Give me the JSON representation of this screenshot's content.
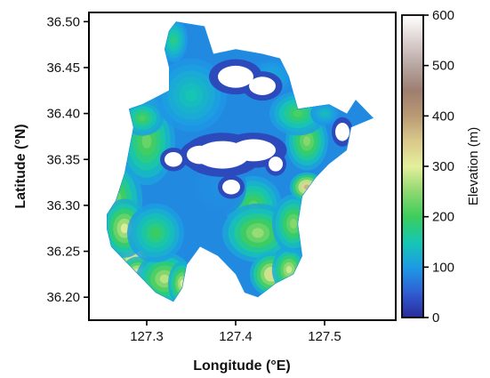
{
  "chart_data": {
    "type": "heatmap",
    "map": {
      "xlabel": "Longitude (°E)",
      "ylabel": "Latitude (°N)",
      "xlim": [
        127.235,
        127.58
      ],
      "ylim": [
        36.175,
        36.51
      ],
      "x_ticks": [
        127.3,
        127.4,
        127.5
      ],
      "x_tick_labels": [
        "127.3",
        "127.4",
        "127.5"
      ],
      "y_ticks": [
        36.2,
        36.25,
        36.3,
        36.35,
        36.4,
        36.45,
        36.5
      ],
      "y_tick_labels": [
        "36.20",
        "36.25",
        "36.30",
        "36.35",
        "36.40",
        "36.45",
        "36.50"
      ],
      "grid": false,
      "region_outline": [
        [
          127.333,
          36.5
        ],
        [
          127.365,
          36.495
        ],
        [
          127.375,
          36.465
        ],
        [
          127.4,
          36.47
        ],
        [
          127.43,
          36.465
        ],
        [
          127.45,
          36.46
        ],
        [
          127.46,
          36.44
        ],
        [
          127.47,
          36.405
        ],
        [
          127.505,
          36.41
        ],
        [
          127.525,
          36.4
        ],
        [
          127.535,
          36.415
        ],
        [
          127.55,
          36.4
        ],
        [
          127.555,
          36.395
        ],
        [
          127.53,
          36.385
        ],
        [
          127.525,
          36.36
        ],
        [
          127.505,
          36.345
        ],
        [
          127.49,
          36.33
        ],
        [
          127.475,
          36.31
        ],
        [
          127.47,
          36.28
        ],
        [
          127.475,
          36.245
        ],
        [
          127.465,
          36.225
        ],
        [
          127.445,
          36.215
        ],
        [
          127.425,
          36.2
        ],
        [
          127.41,
          36.205
        ],
        [
          127.4,
          36.225
        ],
        [
          127.38,
          36.245
        ],
        [
          127.36,
          36.255
        ],
        [
          127.345,
          36.235
        ],
        [
          127.34,
          36.21
        ],
        [
          127.33,
          36.195
        ],
        [
          127.31,
          36.205
        ],
        [
          127.29,
          36.225
        ],
        [
          127.275,
          36.24
        ],
        [
          127.26,
          36.255
        ],
        [
          127.255,
          36.275
        ],
        [
          127.255,
          36.29
        ],
        [
          127.265,
          36.305
        ],
        [
          127.275,
          36.335
        ],
        [
          127.28,
          36.36
        ],
        [
          127.285,
          36.385
        ],
        [
          127.28,
          36.405
        ],
        [
          127.295,
          36.41
        ],
        [
          127.325,
          36.425
        ],
        [
          127.325,
          36.45
        ],
        [
          127.32,
          36.47
        ],
        [
          127.325,
          36.49
        ]
      ],
      "elevation_blobs": [
        [
          127.26,
          36.305,
          0.022,
          0.03,
          260
        ],
        [
          127.285,
          36.245,
          0.018,
          0.018,
          330
        ],
        [
          127.29,
          36.225,
          0.012,
          0.012,
          360
        ],
        [
          127.275,
          36.275,
          0.016,
          0.02,
          300
        ],
        [
          127.32,
          36.22,
          0.02,
          0.018,
          280
        ],
        [
          127.34,
          36.215,
          0.01,
          0.015,
          300
        ],
        [
          127.3,
          36.37,
          0.02,
          0.03,
          230
        ],
        [
          127.295,
          36.395,
          0.015,
          0.012,
          210
        ],
        [
          127.33,
          36.48,
          0.01,
          0.015,
          180
        ],
        [
          127.35,
          36.42,
          0.025,
          0.025,
          150
        ],
        [
          127.42,
          36.3,
          0.02,
          0.02,
          220
        ],
        [
          127.425,
          36.27,
          0.025,
          0.02,
          260
        ],
        [
          127.44,
          36.225,
          0.015,
          0.015,
          330
        ],
        [
          127.46,
          36.23,
          0.012,
          0.015,
          290
        ],
        [
          127.465,
          36.28,
          0.015,
          0.02,
          250
        ],
        [
          127.48,
          36.32,
          0.012,
          0.01,
          380
        ],
        [
          127.48,
          36.37,
          0.015,
          0.02,
          250
        ],
        [
          127.47,
          36.4,
          0.02,
          0.015,
          210
        ],
        [
          127.5,
          36.4,
          0.01,
          0.008,
          140
        ],
        [
          127.44,
          36.44,
          0.015,
          0.012,
          120
        ],
        [
          127.31,
          36.27,
          0.02,
          0.02,
          200
        ],
        [
          127.38,
          36.32,
          0.02,
          0.02,
          90
        ]
      ],
      "lowland_voids": [
        [
          127.4,
          36.44,
          0.02,
          0.012
        ],
        [
          127.43,
          36.43,
          0.015,
          0.01
        ],
        [
          127.385,
          36.355,
          0.03,
          0.015
        ],
        [
          127.42,
          36.36,
          0.025,
          0.012
        ],
        [
          127.36,
          36.355,
          0.015,
          0.01
        ],
        [
          127.395,
          36.32,
          0.01,
          0.008
        ],
        [
          127.445,
          36.345,
          0.008,
          0.008
        ],
        [
          127.33,
          36.35,
          0.01,
          0.008
        ],
        [
          127.52,
          36.38,
          0.008,
          0.01
        ]
      ]
    },
    "colorbar": {
      "label": "Elevation (m)",
      "min": 0,
      "max": 600,
      "ticks": [
        0,
        100,
        200,
        300,
        400,
        500,
        600
      ],
      "tick_labels": [
        "0",
        "100",
        "200",
        "300",
        "400",
        "500",
        "600"
      ],
      "colormap_stops": [
        [
          0,
          "#2a2a9a"
        ],
        [
          50,
          "#2f5fd4"
        ],
        [
          100,
          "#1d9be6"
        ],
        [
          150,
          "#16c7b2"
        ],
        [
          200,
          "#3ccd5c"
        ],
        [
          250,
          "#8fd870"
        ],
        [
          300,
          "#e4ee9c"
        ],
        [
          350,
          "#d9c98a"
        ],
        [
          400,
          "#b99a74"
        ],
        [
          450,
          "#9e7e70"
        ],
        [
          500,
          "#b8a6a2"
        ],
        [
          550,
          "#ddd2d0"
        ],
        [
          600,
          "#ffffff"
        ]
      ]
    }
  }
}
